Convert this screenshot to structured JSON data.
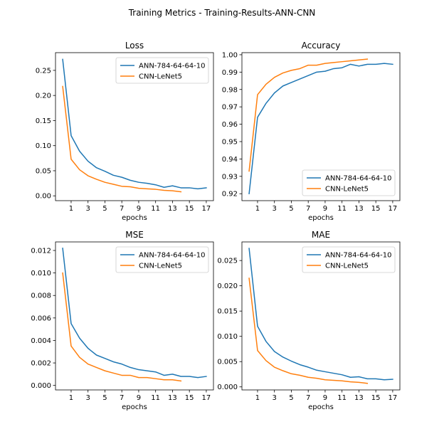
{
  "figure": {
    "suptitle": "Training Metrics - Training-Results-ANN-CNN"
  },
  "colors": {
    "ann": "#1f77b4",
    "cnn": "#ff7f0e"
  },
  "chart_data": [
    {
      "type": "line",
      "title": "Loss",
      "xlabel": "epochs",
      "ylabel": "",
      "xlim": [
        -0.85,
        17.85
      ],
      "ylim": [
        -0.0096,
        0.2853
      ],
      "xticks": [
        1,
        3,
        5,
        7,
        9,
        11,
        13,
        15,
        17
      ],
      "xtick_labels": [
        "1",
        "3",
        "5",
        "7",
        "9",
        "11",
        "13",
        "15",
        "17"
      ],
      "yticks": [
        0.0,
        0.05,
        0.1,
        0.15,
        0.2,
        0.25
      ],
      "ytick_labels": [
        "0.00",
        "0.05",
        "0.10",
        "0.15",
        "0.20",
        "0.25"
      ],
      "legend": "upper right",
      "series": [
        {
          "name": "ANN-784-64-64-10",
          "color": "#1f77b4",
          "x": [
            0,
            1,
            2,
            3,
            4,
            5,
            6,
            7,
            8,
            9,
            10,
            11,
            12,
            13,
            14,
            15,
            16,
            17
          ],
          "values": [
            0.272,
            0.12,
            0.089,
            0.069,
            0.056,
            0.049,
            0.041,
            0.037,
            0.031,
            0.027,
            0.025,
            0.022,
            0.017,
            0.02,
            0.016,
            0.016,
            0.014,
            0.016
          ]
        },
        {
          "name": "CNN-LeNet5",
          "color": "#ff7f0e",
          "x": [
            0,
            1,
            2,
            3,
            4,
            5,
            6,
            7,
            8,
            9,
            10,
            11,
            12,
            13,
            14
          ],
          "values": [
            0.218,
            0.073,
            0.052,
            0.04,
            0.033,
            0.027,
            0.023,
            0.019,
            0.018,
            0.015,
            0.014,
            0.013,
            0.011,
            0.01,
            0.008
          ]
        }
      ]
    },
    {
      "type": "line",
      "title": "Accuracy",
      "xlabel": "epochs",
      "ylabel": "",
      "xlim": [
        -0.85,
        17.85
      ],
      "ylim": [
        0.916,
        1.0012
      ],
      "xticks": [
        1,
        3,
        5,
        7,
        9,
        11,
        13,
        15,
        17
      ],
      "xtick_labels": [
        "1",
        "3",
        "5",
        "7",
        "9",
        "11",
        "13",
        "15",
        "17"
      ],
      "yticks": [
        0.92,
        0.93,
        0.94,
        0.95,
        0.96,
        0.97,
        0.98,
        0.99,
        1.0
      ],
      "ytick_labels": [
        "0.92",
        "0.93",
        "0.94",
        "0.95",
        "0.96",
        "0.97",
        "0.98",
        "0.99",
        "1.00"
      ],
      "legend": "lower right",
      "series": [
        {
          "name": "ANN-784-64-64-10",
          "color": "#1f77b4",
          "x": [
            0,
            1,
            2,
            3,
            4,
            5,
            6,
            7,
            8,
            9,
            10,
            11,
            12,
            13,
            14,
            15,
            16,
            17
          ],
          "values": [
            0.92,
            0.964,
            0.972,
            0.978,
            0.982,
            0.984,
            0.986,
            0.988,
            0.99,
            0.9905,
            0.992,
            0.9925,
            0.9945,
            0.9935,
            0.9945,
            0.9945,
            0.995,
            0.9945
          ]
        },
        {
          "name": "CNN-LeNet5",
          "color": "#ff7f0e",
          "x": [
            0,
            1,
            2,
            3,
            4,
            5,
            6,
            7,
            8,
            9,
            10,
            11,
            12,
            13,
            14
          ],
          "values": [
            0.933,
            0.977,
            0.983,
            0.987,
            0.9895,
            0.991,
            0.992,
            0.994,
            0.994,
            0.995,
            0.9955,
            0.996,
            0.9965,
            0.997,
            0.9975
          ]
        }
      ]
    },
    {
      "type": "line",
      "title": "MSE",
      "xlabel": "epochs",
      "ylabel": "",
      "xlim": [
        -0.85,
        17.85
      ],
      "ylim": [
        -0.0004,
        0.01276
      ],
      "xticks": [
        1,
        3,
        5,
        7,
        9,
        11,
        13,
        15,
        17
      ],
      "xtick_labels": [
        "1",
        "3",
        "5",
        "7",
        "9",
        "11",
        "13",
        "15",
        "17"
      ],
      "yticks": [
        0.0,
        0.002,
        0.004,
        0.006,
        0.008,
        0.01,
        0.012
      ],
      "ytick_labels": [
        "0.000",
        "0.002",
        "0.004",
        "0.006",
        "0.008",
        "0.010",
        "0.012"
      ],
      "legend": "upper right",
      "series": [
        {
          "name": "ANN-784-64-64-10",
          "color": "#1f77b4",
          "x": [
            0,
            1,
            2,
            3,
            4,
            5,
            6,
            7,
            8,
            9,
            10,
            11,
            12,
            13,
            14,
            15,
            16,
            17
          ],
          "values": [
            0.0122,
            0.0055,
            0.0042,
            0.0033,
            0.0027,
            0.0024,
            0.0021,
            0.0019,
            0.0016,
            0.0014,
            0.0013,
            0.0012,
            0.0009,
            0.001,
            0.0008,
            0.0008,
            0.0007,
            0.0008
          ]
        },
        {
          "name": "CNN-LeNet5",
          "color": "#ff7f0e",
          "x": [
            0,
            1,
            2,
            3,
            4,
            5,
            6,
            7,
            8,
            9,
            10,
            11,
            12,
            13,
            14
          ],
          "values": [
            0.01,
            0.0035,
            0.0025,
            0.0019,
            0.0016,
            0.0013,
            0.0011,
            0.0009,
            0.0009,
            0.0007,
            0.0007,
            0.0006,
            0.0005,
            0.0005,
            0.0004
          ]
        }
      ]
    },
    {
      "type": "line",
      "title": "MAE",
      "xlabel": "epochs",
      "ylabel": "",
      "xlim": [
        -0.85,
        17.85
      ],
      "ylim": [
        -0.0006,
        0.02868
      ],
      "xticks": [
        1,
        3,
        5,
        7,
        9,
        11,
        13,
        15,
        17
      ],
      "xtick_labels": [
        "1",
        "3",
        "5",
        "7",
        "9",
        "11",
        "13",
        "15",
        "17"
      ],
      "yticks": [
        0.0,
        0.005,
        0.01,
        0.015,
        0.02,
        0.025
      ],
      "ytick_labels": [
        "0.000",
        "0.005",
        "0.010",
        "0.015",
        "0.020",
        "0.025"
      ],
      "legend": "upper right",
      "series": [
        {
          "name": "ANN-784-64-64-10",
          "color": "#1f77b4",
          "x": [
            0,
            1,
            2,
            3,
            4,
            5,
            6,
            7,
            8,
            9,
            10,
            11,
            12,
            13,
            14,
            15,
            16,
            17
          ],
          "values": [
            0.0274,
            0.012,
            0.009,
            0.007,
            0.0059,
            0.0051,
            0.0044,
            0.0039,
            0.0033,
            0.003,
            0.0027,
            0.0024,
            0.0019,
            0.002,
            0.0016,
            0.0016,
            0.0014,
            0.0015
          ]
        },
        {
          "name": "CNN-LeNet5",
          "color": "#ff7f0e",
          "x": [
            0,
            1,
            2,
            3,
            4,
            5,
            6,
            7,
            8,
            9,
            10,
            11,
            12,
            13,
            14
          ],
          "values": [
            0.0215,
            0.0072,
            0.0052,
            0.0039,
            0.0032,
            0.0026,
            0.0023,
            0.0019,
            0.0017,
            0.0014,
            0.0013,
            0.0012,
            0.001,
            0.0009,
            0.0007
          ]
        }
      ]
    }
  ]
}
